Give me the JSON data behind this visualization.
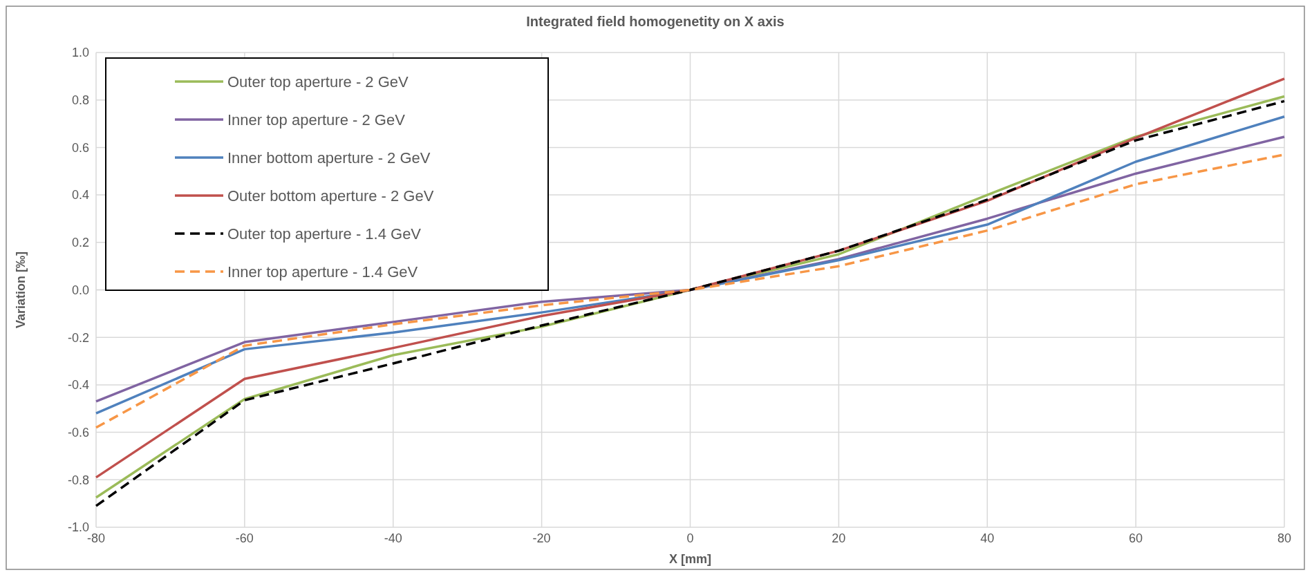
{
  "chart_data": {
    "type": "line",
    "title": "Integrated field homogenetity on X axis",
    "xlabel": "X [mm]",
    "ylabel": "Variation [‰]",
    "x": [
      -80,
      -60,
      -40,
      -20,
      0,
      20,
      40,
      60,
      80
    ],
    "xlim": [
      -80,
      80
    ],
    "xticks": [
      -80,
      -60,
      -40,
      -20,
      0,
      20,
      40,
      60,
      80
    ],
    "ylim": [
      -1,
      1
    ],
    "yticks": [
      {
        "value": -1,
        "label": "-1.0"
      },
      {
        "value": -0.8,
        "label": "-0.8"
      },
      {
        "value": -0.6,
        "label": "-0.6"
      },
      {
        "value": -0.4,
        "label": "-0.4"
      },
      {
        "value": -0.2,
        "label": "-0.2"
      },
      {
        "value": 0,
        "label": "0.0"
      },
      {
        "value": 0.2,
        "label": "0.2"
      },
      {
        "value": 0.4,
        "label": "0.4"
      },
      {
        "value": 0.6,
        "label": "0.6"
      },
      {
        "value": 0.8,
        "label": "0.8"
      },
      {
        "value": 1,
        "label": "1.0"
      }
    ],
    "grid": true,
    "legend": "top left",
    "marker": "none",
    "series": [
      {
        "name": "Outer top aperture - 2 GeV",
        "color": "#9bbb59",
        "line_style": "solid",
        "values": [
          -0.875,
          -0.46,
          -0.275,
          -0.155,
          0,
          0.15,
          0.4,
          0.645,
          0.815
        ]
      },
      {
        "name": "Inner top aperture - 2 GeV",
        "color": "#8064a2",
        "line_style": "solid",
        "values": [
          -0.47,
          -0.22,
          -0.135,
          -0.05,
          0,
          0.13,
          0.3,
          0.49,
          0.645
        ]
      },
      {
        "name": "Inner bottom aperture - 2 GeV",
        "color": "#4f81bd",
        "line_style": "solid",
        "values": [
          -0.52,
          -0.25,
          -0.18,
          -0.095,
          0,
          0.125,
          0.275,
          0.54,
          0.73
        ]
      },
      {
        "name": "Outer bottom aperture - 2 GeV",
        "color": "#c0504d",
        "line_style": "solid",
        "values": [
          -0.79,
          -0.375,
          -0.245,
          -0.11,
          0,
          0.165,
          0.375,
          0.64,
          0.89
        ]
      },
      {
        "name": "Outer top aperture - 1.4 GeV",
        "color": "#000000",
        "line_style": "dashed",
        "values": [
          -0.91,
          -0.465,
          -0.31,
          -0.15,
          0,
          0.165,
          0.38,
          0.63,
          0.795
        ]
      },
      {
        "name": "Inner top aperture - 1.4 GeV",
        "color": "#f79646",
        "line_style": "dashed",
        "values": [
          -0.58,
          -0.235,
          -0.145,
          -0.065,
          0,
          0.1,
          0.25,
          0.445,
          0.57
        ]
      }
    ]
  }
}
